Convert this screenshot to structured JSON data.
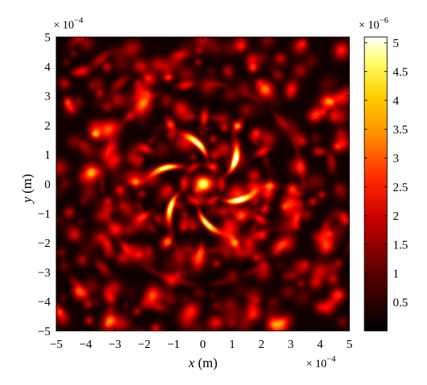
{
  "chart_data": {
    "type": "heatmap",
    "title": "",
    "xlabel": {
      "var": "x",
      "unit": "(m)"
    },
    "ylabel": {
      "var": "y",
      "unit": "(m)"
    },
    "xlim": [
      -5,
      5
    ],
    "ylim": [
      -5,
      5
    ],
    "xticks": [
      "−5",
      "−4",
      "−3",
      "−2",
      "−1",
      "0",
      "1",
      "2",
      "3",
      "4",
      "5"
    ],
    "yticks": [
      "5",
      "4",
      "3",
      "2",
      "1",
      "0",
      "−1",
      "−2",
      "−3",
      "−4",
      "−5"
    ],
    "x_multiplier": {
      "base": "× 10",
      "exp": "−4"
    },
    "y_multiplier": {
      "base": "× 10",
      "exp": "−4"
    },
    "colorbar": {
      "multiplier": {
        "base": "× 10",
        "exp": "−6"
      },
      "ticks": [
        "5",
        "4.5",
        "4",
        "3.5",
        "3",
        "2.5",
        "2",
        "1.5",
        "1",
        "0.5"
      ],
      "tick_values": [
        5,
        4.5,
        4,
        3.5,
        3,
        2.5,
        2,
        1.5,
        1,
        0.5
      ],
      "range": [
        0,
        5.1
      ],
      "colormap": "hot"
    },
    "pattern": {
      "description_units": "axis units (×10^-4 m); intensity units (×10^-6)",
      "center_spot": {
        "x": 0,
        "y": 0,
        "radius": 0.3,
        "peak": 4.6
      },
      "inner_ring": {
        "radius": 0.65,
        "peak": 1.6
      },
      "spiral_arms": {
        "count": 6,
        "radius_range": [
          1.0,
          1.8
        ],
        "peak": 4.9
      },
      "petal_ring": {
        "count": 12,
        "radius": 2.3,
        "peak": 1.9
      },
      "outer_rays": {
        "count": 6,
        "start_radius": 3.0,
        "peak": 1.2
      },
      "background_level": 0.35
    }
  }
}
